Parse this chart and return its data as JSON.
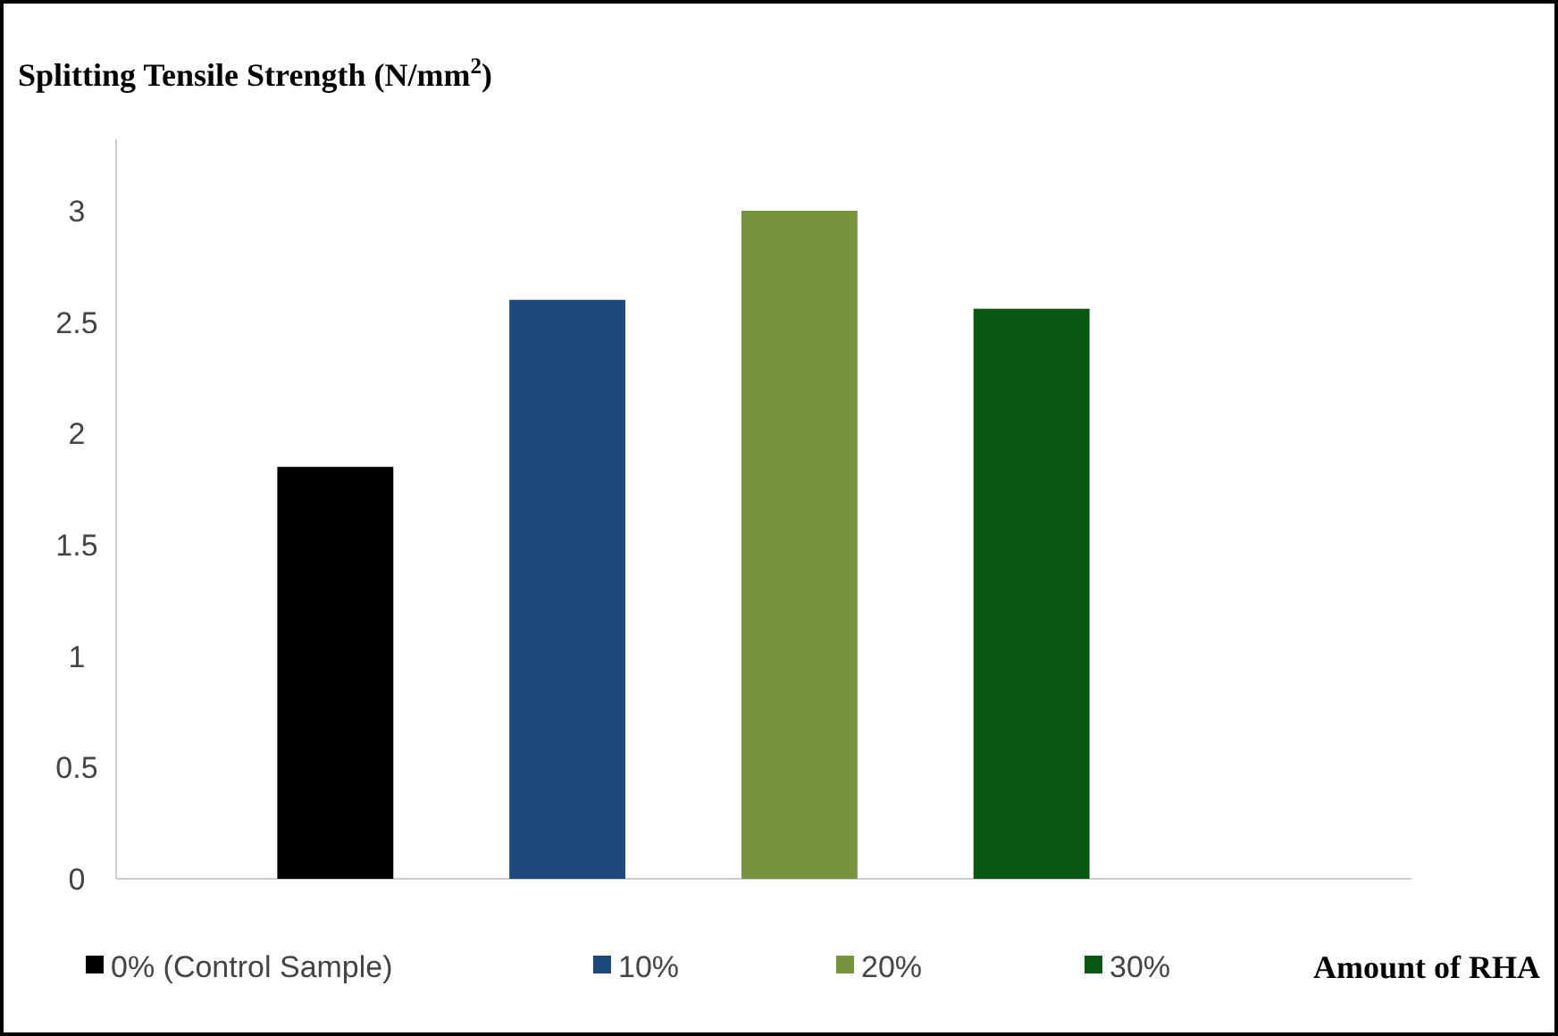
{
  "chart_data": {
    "type": "bar",
    "ylabel": "Splitting Tensile Strength (N/mm$^{2}$)",
    "xlabel": "Amount of RHA",
    "categories": [
      null
    ],
    "series": [
      {
        "name": "0% (Control Sample)",
        "color": "#000000",
        "values": [
          1.85
        ]
      },
      {
        "name": "10%",
        "color": "#1f497d",
        "values": [
          2.6
        ]
      },
      {
        "name": "20%",
        "color": "#77933c",
        "values": [
          3
        ]
      },
      {
        "name": "30%",
        "color": "#0a5712",
        "values": [
          2.56
        ]
      }
    ],
    "ylim": [
      0,
      3
    ],
    "yticks": [
      0,
      0.5,
      1,
      1.5,
      2,
      2.5,
      3
    ],
    "grid": false,
    "legend": "bottom"
  }
}
